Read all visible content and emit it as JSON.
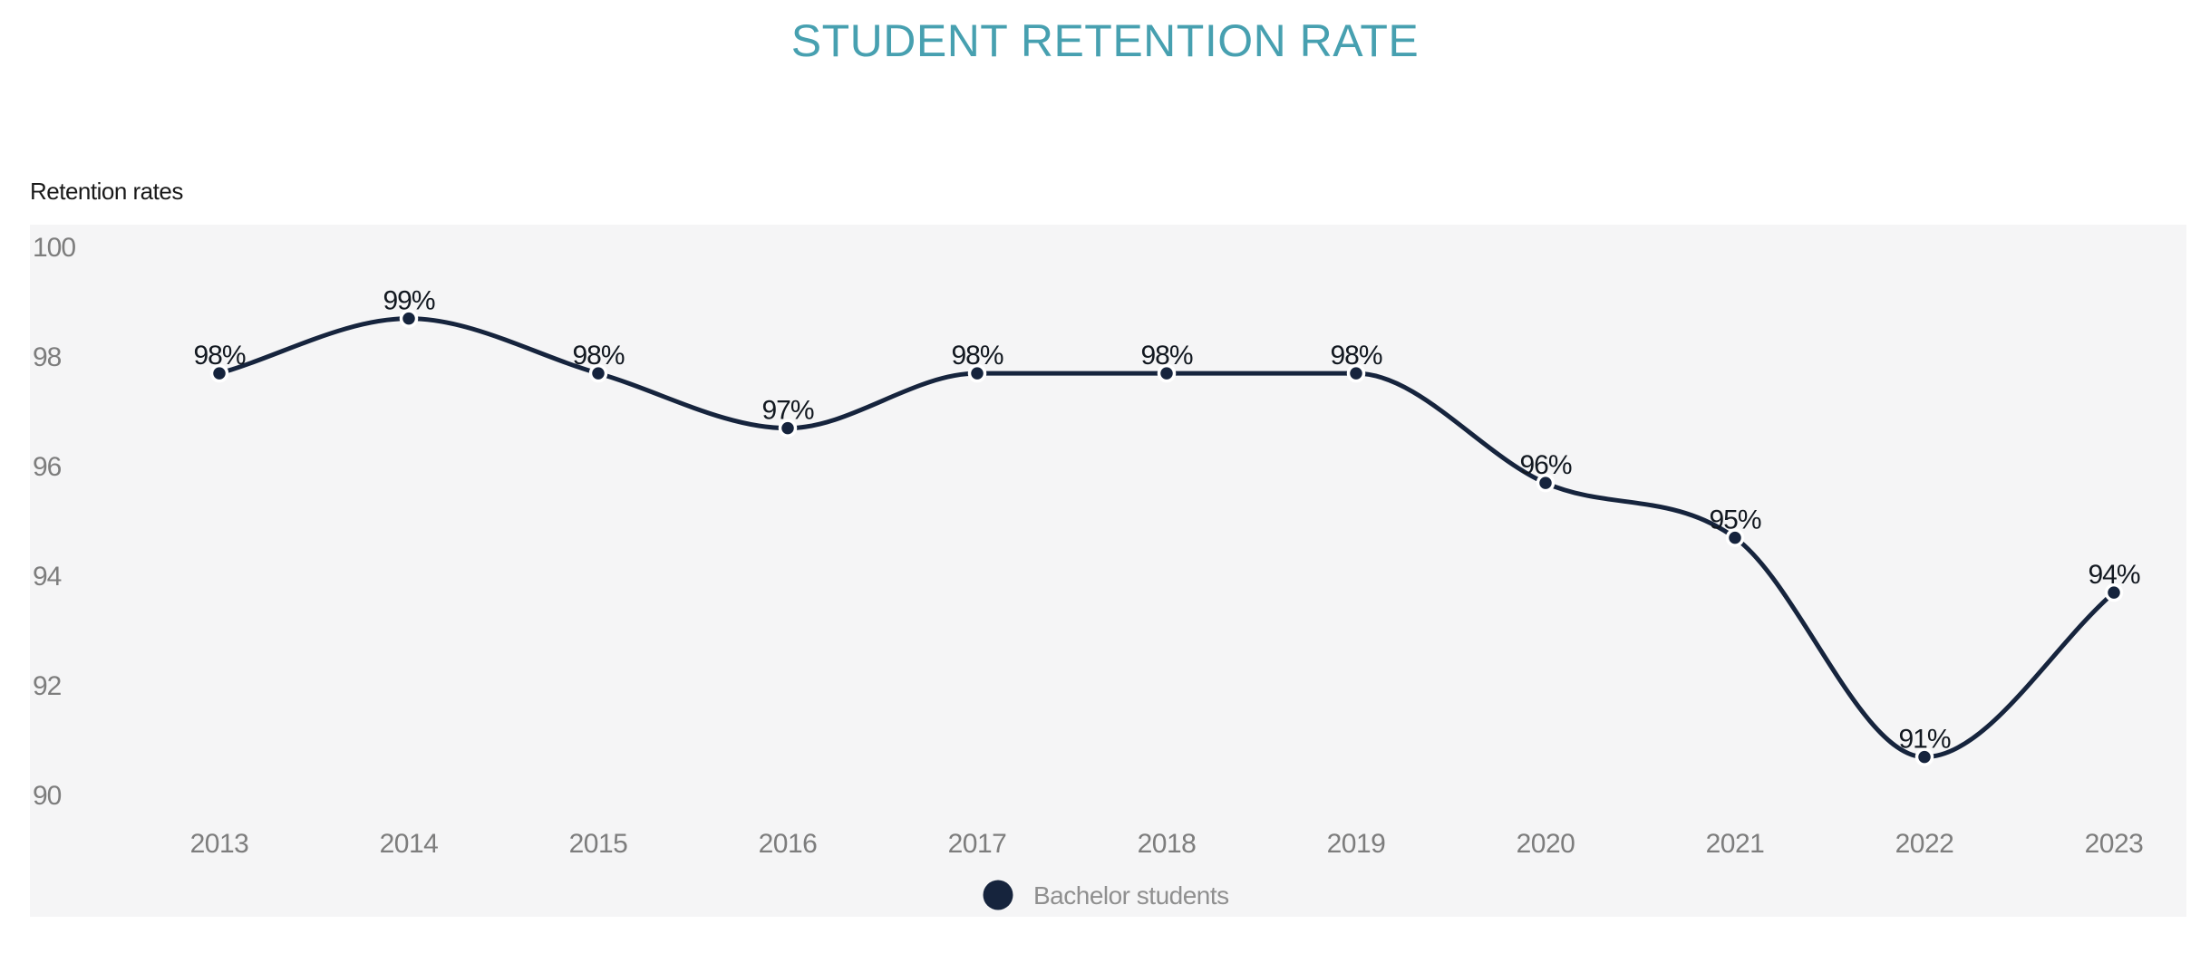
{
  "title": "STUDENT RETENTION RATE",
  "y_axis_title": "Retention rates",
  "legend": {
    "label": "Bachelor students",
    "marker_color": "#16243D"
  },
  "colors": {
    "title_text": "#47A0B0",
    "line": "#16243D",
    "point_fill": "#16243D",
    "point_halo": "#FFFFFF",
    "plot_background": "#F5F5F6",
    "axis_text": "#7D7D7D",
    "data_label_text": "#121820",
    "legend_text": "#8F8F8F",
    "page_background": "#FFFFFF"
  },
  "chart_data": {
    "type": "line",
    "title": "STUDENT RETENTION RATE",
    "xlabel": "",
    "ylabel": "Retention rates",
    "x": [
      2013,
      2014,
      2015,
      2016,
      2017,
      2018,
      2019,
      2020,
      2021,
      2022,
      2023
    ],
    "y_ticks": [
      100,
      98,
      96,
      94,
      92,
      90
    ],
    "ylim": [
      87.8,
      100.4
    ],
    "grid": false,
    "legend_position": "bottom",
    "line_smoothing": "monotone",
    "series": [
      {
        "name": "Bachelor students",
        "values": [
          97.7,
          98.7,
          97.7,
          96.7,
          97.7,
          97.7,
          97.7,
          95.7,
          94.7,
          90.7,
          93.7
        ],
        "point_labels": [
          "98%",
          "99%",
          "98%",
          "97%",
          "98%",
          "98%",
          "98%",
          "96%",
          "95%",
          "91%",
          "94%"
        ]
      }
    ]
  }
}
